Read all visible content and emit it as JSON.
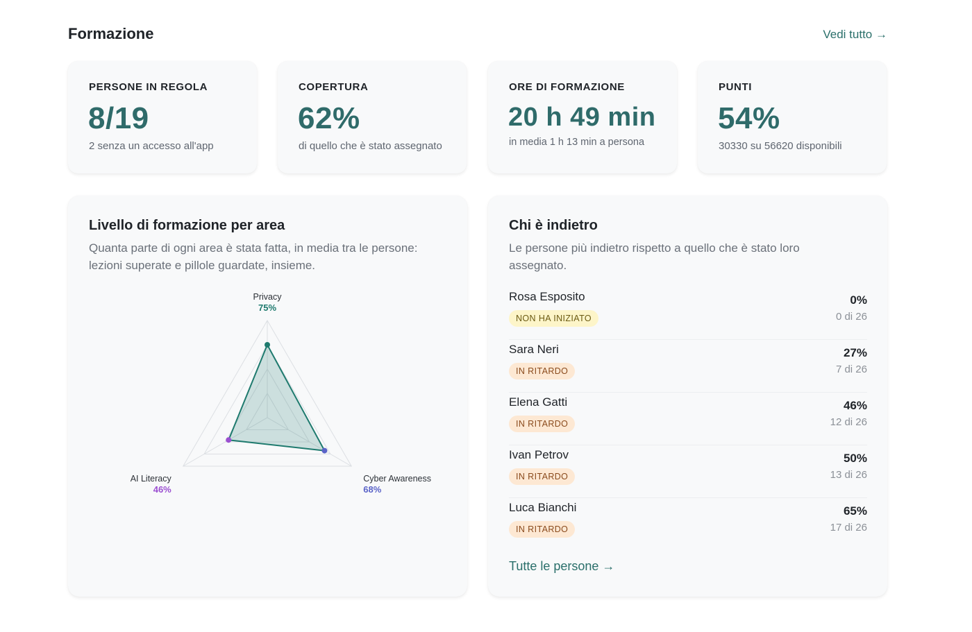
{
  "header": {
    "title": "Formazione",
    "see_all": "Vedi tutto →"
  },
  "kpis": [
    {
      "label": "PERSONE IN REGOLA",
      "value": "8/19",
      "sub": "2 senza un accesso all'app"
    },
    {
      "label": "COPERTURA",
      "value": "62%",
      "sub": "di quello che è stato assegnato"
    },
    {
      "label": "ORE DI FORMAZIONE",
      "value": "20 h 49 min",
      "sub": "in media 1 h 13 min a persona"
    },
    {
      "label": "PUNTI",
      "value": "54%",
      "sub": "30330 su 56620 disponibili"
    }
  ],
  "radar_panel": {
    "title": "Livello di formazione per area",
    "description": "Quanta parte di ogni area è stata fatta, in media tra le persone: lezioni superate e pillole guardate, insieme."
  },
  "chart_data": {
    "type": "radar",
    "categories": [
      "Privacy",
      "Cyber Awareness",
      "AI Literacy"
    ],
    "values": [
      75,
      68,
      46
    ],
    "value_labels": [
      "75%",
      "68%",
      "46%"
    ],
    "label_colors": [
      "#1e7a6e",
      "#5a63c8",
      "#9b4fd1"
    ],
    "range": [
      0,
      100
    ],
    "grid_levels": 4,
    "grid": true,
    "fill_color": "#1e7a6e"
  },
  "behind_panel": {
    "title": "Chi è indietro",
    "description": "Le persone più indietro rispetto a quello che è stato loro assegnato.",
    "people": [
      {
        "name": "Rosa Esposito",
        "status": "NON HA INIZIATO",
        "status_kind": "none",
        "pct": "0%",
        "done": "0 di 26"
      },
      {
        "name": "Sara Neri",
        "status": "IN RITARDO",
        "status_kind": "late",
        "pct": "27%",
        "done": "7 di 26"
      },
      {
        "name": "Elena Gatti",
        "status": "IN RITARDO",
        "status_kind": "late",
        "pct": "46%",
        "done": "12 di 26"
      },
      {
        "name": "Ivan Petrov",
        "status": "IN RITARDO",
        "status_kind": "late",
        "pct": "50%",
        "done": "13 di 26"
      },
      {
        "name": "Luca Bianchi",
        "status": "IN RITARDO",
        "status_kind": "late",
        "pct": "65%",
        "done": "17 di 26"
      }
    ],
    "all_link": "Tutte le persone →"
  }
}
